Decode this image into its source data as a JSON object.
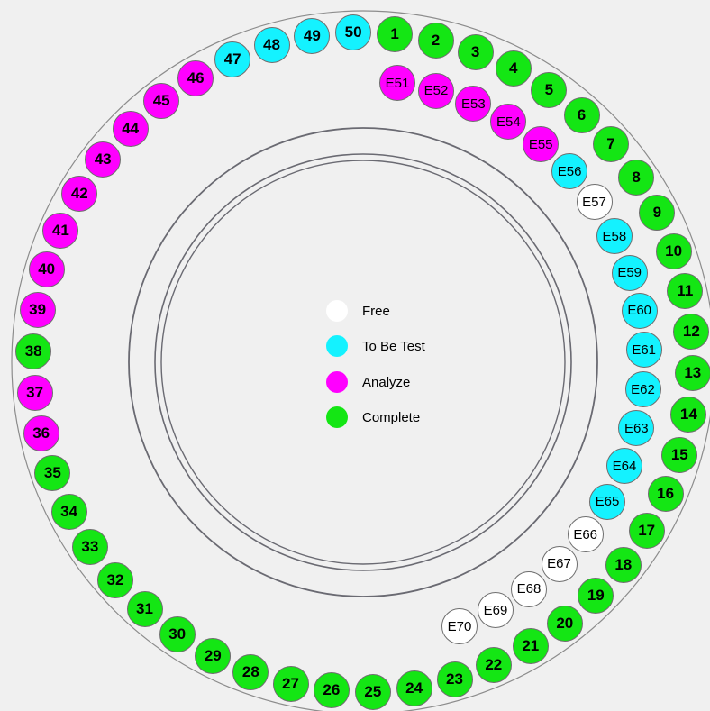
{
  "status_colors": {
    "free": "#ffffff",
    "to_be_test": "#14f2ff",
    "analyze": "#ff00ff",
    "complete": "#14e614"
  },
  "legend": [
    {
      "key": "free",
      "label": "Free"
    },
    {
      "key": "to_be_test",
      "label": "To Be Test"
    },
    {
      "key": "analyze",
      "label": "Analyze"
    },
    {
      "key": "complete",
      "label": "Complete"
    }
  ],
  "outer_positions": [
    {
      "label": "1",
      "status": "complete"
    },
    {
      "label": "2",
      "status": "complete"
    },
    {
      "label": "3",
      "status": "complete"
    },
    {
      "label": "4",
      "status": "complete"
    },
    {
      "label": "5",
      "status": "complete"
    },
    {
      "label": "6",
      "status": "complete"
    },
    {
      "label": "7",
      "status": "complete"
    },
    {
      "label": "8",
      "status": "complete"
    },
    {
      "label": "9",
      "status": "complete"
    },
    {
      "label": "10",
      "status": "complete"
    },
    {
      "label": "11",
      "status": "complete"
    },
    {
      "label": "12",
      "status": "complete"
    },
    {
      "label": "13",
      "status": "complete"
    },
    {
      "label": "14",
      "status": "complete"
    },
    {
      "label": "15",
      "status": "complete"
    },
    {
      "label": "16",
      "status": "complete"
    },
    {
      "label": "17",
      "status": "complete"
    },
    {
      "label": "18",
      "status": "complete"
    },
    {
      "label": "19",
      "status": "complete"
    },
    {
      "label": "20",
      "status": "complete"
    },
    {
      "label": "21",
      "status": "complete"
    },
    {
      "label": "22",
      "status": "complete"
    },
    {
      "label": "23",
      "status": "complete"
    },
    {
      "label": "24",
      "status": "complete"
    },
    {
      "label": "25",
      "status": "complete"
    },
    {
      "label": "26",
      "status": "complete"
    },
    {
      "label": "27",
      "status": "complete"
    },
    {
      "label": "28",
      "status": "complete"
    },
    {
      "label": "29",
      "status": "complete"
    },
    {
      "label": "30",
      "status": "complete"
    },
    {
      "label": "31",
      "status": "complete"
    },
    {
      "label": "32",
      "status": "complete"
    },
    {
      "label": "33",
      "status": "complete"
    },
    {
      "label": "34",
      "status": "complete"
    },
    {
      "label": "35",
      "status": "complete"
    },
    {
      "label": "36",
      "status": "analyze"
    },
    {
      "label": "37",
      "status": "analyze"
    },
    {
      "label": "38",
      "status": "complete"
    },
    {
      "label": "39",
      "status": "analyze"
    },
    {
      "label": "40",
      "status": "analyze"
    },
    {
      "label": "41",
      "status": "analyze"
    },
    {
      "label": "42",
      "status": "analyze"
    },
    {
      "label": "43",
      "status": "analyze"
    },
    {
      "label": "44",
      "status": "analyze"
    },
    {
      "label": "45",
      "status": "analyze"
    },
    {
      "label": "46",
      "status": "analyze"
    },
    {
      "label": "47",
      "status": "to_be_test"
    },
    {
      "label": "48",
      "status": "to_be_test"
    },
    {
      "label": "49",
      "status": "to_be_test"
    },
    {
      "label": "50",
      "status": "to_be_test"
    }
  ],
  "inner_positions": [
    {
      "label": "E51",
      "status": "analyze"
    },
    {
      "label": "E52",
      "status": "analyze"
    },
    {
      "label": "E53",
      "status": "analyze"
    },
    {
      "label": "E54",
      "status": "analyze"
    },
    {
      "label": "E55",
      "status": "analyze"
    },
    {
      "label": "E56",
      "status": "to_be_test"
    },
    {
      "label": "E57",
      "status": "free"
    },
    {
      "label": "E58",
      "status": "to_be_test"
    },
    {
      "label": "E59",
      "status": "to_be_test"
    },
    {
      "label": "E60",
      "status": "to_be_test"
    },
    {
      "label": "E61",
      "status": "to_be_test"
    },
    {
      "label": "E62",
      "status": "to_be_test"
    },
    {
      "label": "E63",
      "status": "to_be_test"
    },
    {
      "label": "E64",
      "status": "to_be_test"
    },
    {
      "label": "E65",
      "status": "to_be_test"
    },
    {
      "label": "E66",
      "status": "free"
    },
    {
      "label": "E67",
      "status": "free"
    },
    {
      "label": "E68",
      "status": "free"
    },
    {
      "label": "E69",
      "status": "free"
    },
    {
      "label": "E70",
      "status": "free"
    }
  ]
}
